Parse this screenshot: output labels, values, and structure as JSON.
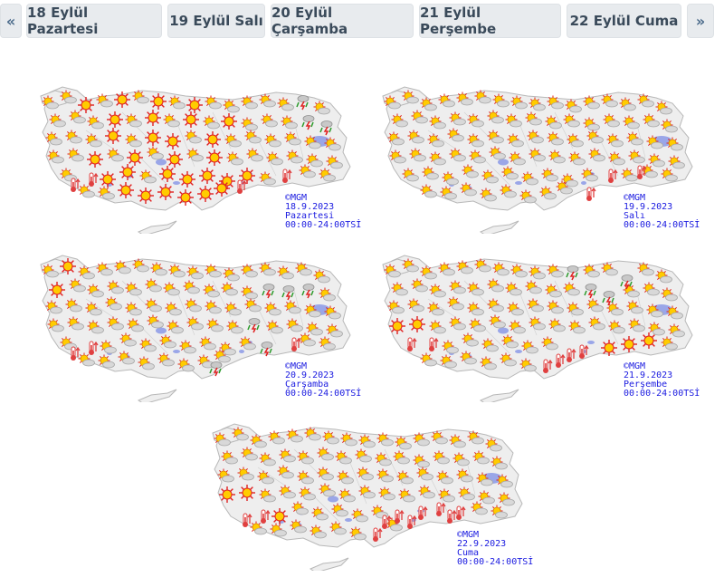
{
  "nav": {
    "prev_label": "«",
    "next_label": "»",
    "days": [
      {
        "label": "18 Eylül Pazartesi"
      },
      {
        "label": "19 Eylül Salı"
      },
      {
        "label": "20 Eylül Çarşamba"
      },
      {
        "label": "21 Eylül Perşembe"
      },
      {
        "label": "22 Eylül Cuma"
      }
    ]
  },
  "maps": [
    {
      "copyright": "©MGM",
      "date": "18.9.2023",
      "day": "Pazartesi",
      "hours": "00:00-24:00TSİ"
    },
    {
      "copyright": "©MGM",
      "date": "19.9.2023",
      "day": "Salı",
      "hours": "00:00-24:00TSİ"
    },
    {
      "copyright": "©MGM",
      "date": "20.9.2023",
      "day": "Çarşamba",
      "hours": "00:00-24:00TSİ"
    },
    {
      "copyright": "©MGM",
      "date": "21.9.2023",
      "day": "Perşembe",
      "hours": "00:00-24:00TSİ"
    },
    {
      "copyright": "©MGM",
      "date": "22.9.2023",
      "day": "Cuma",
      "hours": "00:00-24:00TSİ"
    }
  ],
  "colors": {
    "land": "#eeeeee",
    "land_border": "#b8b8b8",
    "lake": "#9aa6e8",
    "sun": "#ffcc00",
    "sun_ray": "#e02020",
    "cloud": "#d8d8d8",
    "hot_icon": "#e04040",
    "storm_icon": "#2a9a2a",
    "label_text": "#1a1ae0"
  },
  "icons": {
    "sunny": "sun-icon",
    "partly_cloudy": "partly-cloudy-icon",
    "hot": "hot-thermometer-icon",
    "thunderstorm": "thunderstorm-icon"
  }
}
